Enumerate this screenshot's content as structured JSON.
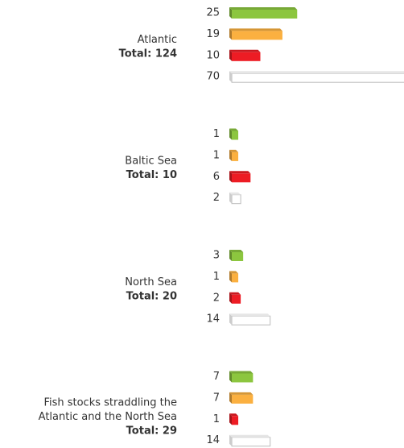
{
  "chart_data": {
    "type": "bar",
    "categories": [
      [
        "Atlantic"
      ],
      [
        "Baltic Sea"
      ],
      [
        "North Sea"
      ],
      [
        "Fish stocks straddling the",
        "Atlantic and the North Sea"
      ]
    ],
    "group_totals": [
      "Total: 124",
      "Total: 10",
      "Total: 20",
      "Total: 29"
    ],
    "series": [
      {
        "color": "#8cc63f",
        "values": [
          25,
          1,
          3,
          7
        ]
      },
      {
        "color": "#fbb040",
        "values": [
          19,
          1,
          1,
          7
        ]
      },
      {
        "color": "#ed1c24",
        "values": [
          10,
          6,
          2,
          1
        ]
      },
      {
        "color": "#ffffff",
        "values": [
          70,
          2,
          14,
          14
        ]
      }
    ]
  }
}
